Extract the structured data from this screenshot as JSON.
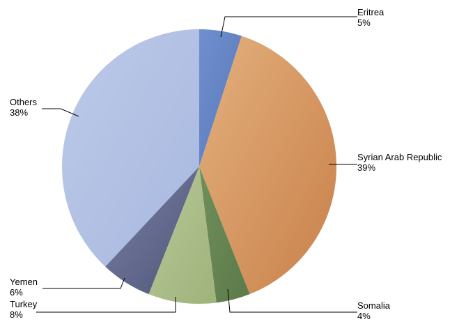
{
  "chart_data": {
    "type": "pie",
    "slices": [
      {
        "label": "Eritrea",
        "pct_label": "5%",
        "value": 5,
        "color": "#6f8fcf",
        "color_dark": "#5a78b8"
      },
      {
        "label": "Syrian Arab Republic",
        "pct_label": "39%",
        "value": 39,
        "color": "#e3b07d",
        "color_dark": "#c9804a"
      },
      {
        "label": "Somalia",
        "pct_label": "4%",
        "value": 4,
        "color": "#6f8f5a",
        "color_dark": "#5c7a4a"
      },
      {
        "label": "Turkey",
        "pct_label": "8%",
        "value": 8,
        "color": "#b7c896",
        "color_dark": "#9fb37c"
      },
      {
        "label": "Yemen",
        "pct_label": "6%",
        "value": 6,
        "color": "#7a7fa6",
        "color_dark": "#4e5777"
      },
      {
        "label": "Others",
        "pct_label": "38%",
        "value": 38,
        "color": "#bccae8",
        "color_dark": "#a8b8df"
      }
    ],
    "start_angle_deg": 0,
    "direction": "clockwise",
    "legend": "none",
    "data_labels": "outside with leader lines"
  }
}
